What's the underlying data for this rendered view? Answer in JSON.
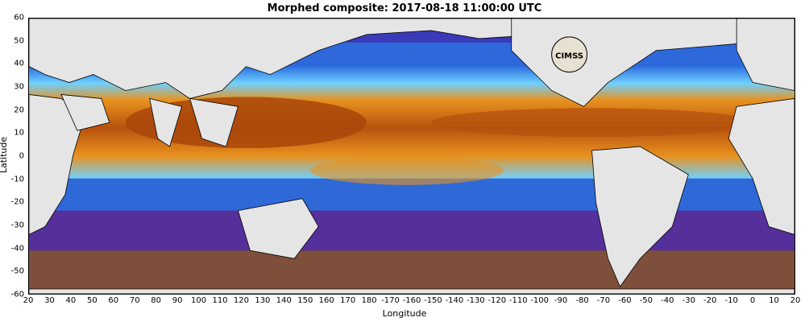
{
  "map": {
    "title": "Morphed composite: 2017-08-18 11:00:00 UTC",
    "xlabel": "Longitude",
    "ylabel": "Latitude",
    "colors": {
      "land": "#e5e5e5",
      "coast": "#000000",
      "moist_high": "#b8520d",
      "moist_mid": "#e8921f",
      "moist_low_cyan": "#6fd0ff",
      "moist_blue": "#2e6fe0",
      "dry_purple": "#4b2c9c",
      "dry_brown": "#8a5a3a"
    },
    "x_ticks": [
      "20",
      "30",
      "40",
      "50",
      "60",
      "70",
      "80",
      "90",
      "100",
      "110",
      "120",
      "130",
      "140",
      "150",
      "160",
      "170",
      "180",
      "-170",
      "-160",
      "-150",
      "-140",
      "-130",
      "-120",
      "-110",
      "-100",
      "-90",
      "-80",
      "-70",
      "-60",
      "-50",
      "-40",
      "-30",
      "-20",
      "-10",
      "0",
      "10",
      "20"
    ],
    "y_ticks": [
      "60",
      "50",
      "40",
      "30",
      "20",
      "10",
      "0",
      "-10",
      "-20",
      "-30",
      "-40",
      "-50",
      "-60"
    ],
    "logo_text": "CIMSS"
  }
}
